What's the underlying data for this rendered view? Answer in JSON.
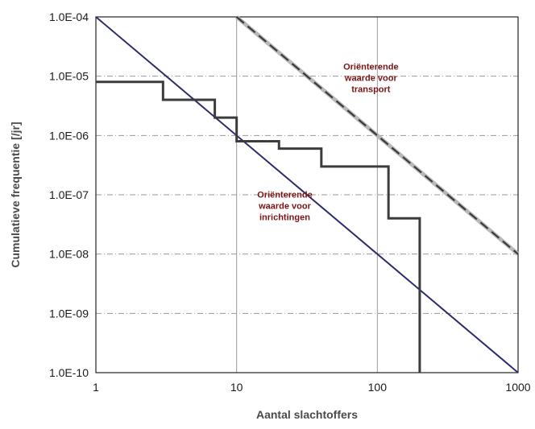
{
  "chart_data": {
    "type": "line",
    "title": "",
    "xlabel": "Aantal slachtoffers",
    "ylabel": "Cumulatieve frequentie [/jr]",
    "xscale": "log",
    "yscale": "log",
    "xlim": [
      1,
      1000
    ],
    "ylim": [
      1e-10,
      0.0001
    ],
    "grid": true,
    "x_ticks": [
      {
        "value": 1,
        "label": "1"
      },
      {
        "value": 10,
        "label": "10"
      },
      {
        "value": 100,
        "label": "100"
      },
      {
        "value": 1000,
        "label": "1000"
      }
    ],
    "y_ticks": [
      {
        "value": 1e-10,
        "label": "1.0E-10"
      },
      {
        "value": 1e-09,
        "label": "1.0E-09"
      },
      {
        "value": 1e-08,
        "label": "1.0E-08"
      },
      {
        "value": 1e-07,
        "label": "1.0E-07"
      },
      {
        "value": 1e-06,
        "label": "1.0E-06"
      },
      {
        "value": 1e-05,
        "label": "1.0E-05"
      },
      {
        "value": 0.0001,
        "label": "1.0E-04"
      }
    ],
    "series": [
      {
        "style": "solid-navy",
        "color": "#2b2b6b",
        "x": [
          1,
          1000
        ],
        "y": [
          0.0001,
          1e-10
        ]
      },
      {
        "style": "dashed-grey",
        "color": "#3a3a3a",
        "x": [
          10,
          1000
        ],
        "y": [
          0.0001,
          1e-08
        ]
      },
      {
        "style": "step",
        "color": "#3c3c3c",
        "x": [
          1,
          3,
          3,
          7,
          7,
          10,
          10,
          20,
          20,
          40,
          40,
          120,
          120,
          200,
          200
        ],
        "y": [
          8e-06,
          8e-06,
          4e-06,
          4e-06,
          2e-06,
          2e-06,
          8e-07,
          8e-07,
          6e-07,
          6e-07,
          3e-07,
          3e-07,
          4e-08,
          4e-08,
          1e-10
        ]
      }
    ],
    "annotations": [
      {
        "lines": [
          "Oriënterende",
          "waarde voor",
          "transport"
        ],
        "x": 90,
        "y": 1.3e-05
      },
      {
        "lines": [
          "Oriënterende",
          "waarde voor",
          "inrichtingen"
        ],
        "x": 22,
        "y": 9e-08
      }
    ]
  }
}
